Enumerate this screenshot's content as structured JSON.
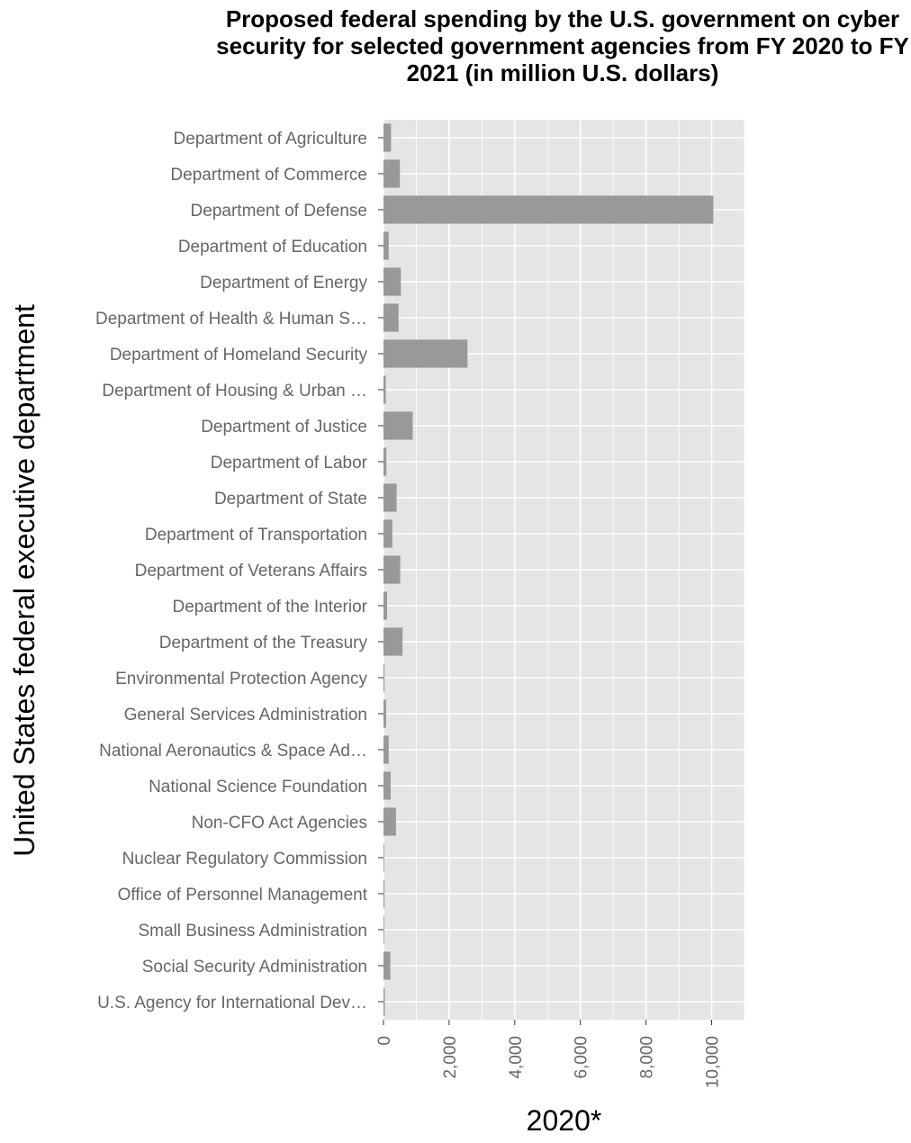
{
  "chart_data": {
    "type": "bar",
    "orientation": "horizontal",
    "title": "Proposed federal spending by the U.S. government on cyber security for selected government agencies from FY 2020 to FY 2021 (in million U.S. dollars)",
    "xlabel": "2020*",
    "ylabel": "United States federal executive department",
    "xlim": [
      0,
      11000
    ],
    "xticks": [
      0,
      2000,
      4000,
      6000,
      8000,
      10000
    ],
    "xtick_labels": [
      "0",
      "2,000",
      "4,000",
      "6,000",
      "8,000",
      "10,000"
    ],
    "grid": true,
    "bar_color": "#999999",
    "panel_color": "#e5e5e5",
    "categories": [
      "Department of Agriculture",
      "Department of Commerce",
      "Department of Defense",
      "Department of Education",
      "Department of Energy",
      "Department of Health & Human S…",
      "Department of Homeland Security",
      "Department of Housing & Urban …",
      "Department of Justice",
      "Department of Labor",
      "Department of State",
      "Department of Transportation",
      "Department of Veterans Affairs",
      "Department of the Interior",
      "Department of the Treasury",
      "Environmental Protection Agency",
      "General Services Administration",
      "National Aeronautics & Space Ad…",
      "National Science Foundation",
      "Non-CFO Act Agencies",
      "Nuclear Regulatory Commission",
      "Office of Personnel Management",
      "Small Business Administration",
      "Social Security Administration",
      "U.S. Agency for International Dev…"
    ],
    "values": [
      230,
      500,
      10050,
      160,
      530,
      460,
      2560,
      70,
      890,
      90,
      400,
      270,
      510,
      110,
      580,
      30,
      80,
      160,
      220,
      380,
      20,
      30,
      10,
      210,
      40
    ]
  }
}
